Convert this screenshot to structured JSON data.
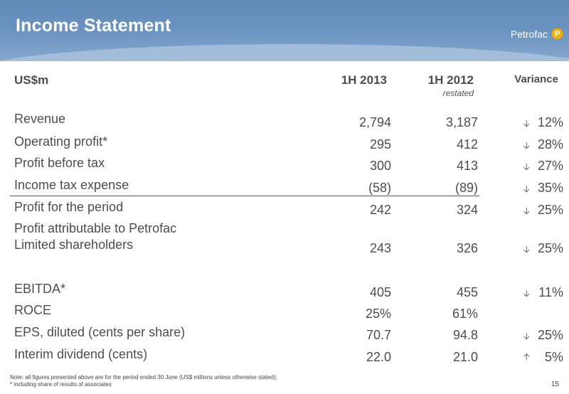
{
  "header": {
    "title": "Income Statement",
    "brand": "Petrofac",
    "brand_logo_letter": "P"
  },
  "columns": {
    "label": "US$m",
    "h1_2013": "1H 2013",
    "h1_2012": "1H 2012",
    "h1_2012_sub": "restated",
    "variance": "Variance"
  },
  "rows": [
    {
      "label": "Revenue",
      "v2013": "2,794",
      "v2012": "3,187",
      "dir": "down",
      "variance": "12%"
    },
    {
      "label": "Operating profit*",
      "v2013": "295",
      "v2012": "412",
      "dir": "down",
      "variance": "28%"
    },
    {
      "label": "Profit before tax",
      "v2013": "300",
      "v2012": "413",
      "dir": "down",
      "variance": "27%"
    },
    {
      "label": "Income tax expense",
      "v2013": "(58)",
      "v2012": "(89)",
      "dir": "down",
      "variance": "35%"
    },
    {
      "label": "Profit for the period",
      "v2013": "242",
      "v2012": "324",
      "dir": "down",
      "variance": "25%"
    },
    {
      "label": "Profit attributable to Petrofac",
      "label2": "Limited shareholders",
      "v2013": "243",
      "v2012": "326",
      "dir": "down",
      "variance": "25%"
    },
    {
      "label": "EBITDA*",
      "v2013": "405",
      "v2012": "455",
      "dir": "down",
      "variance": "11%"
    },
    {
      "label": "ROCE",
      "v2013": "25%",
      "v2012": "61%",
      "dir": "",
      "variance": ""
    },
    {
      "label": "EPS, diluted (cents per share)",
      "v2013": "70.7",
      "v2012": "94.8",
      "dir": "down",
      "variance": "25%"
    },
    {
      "label": "Interim dividend (cents)",
      "v2013": "22.0",
      "v2012": "21.0",
      "dir": "up",
      "variance": "5%"
    }
  ],
  "notes": {
    "line1": "Note: all figures presented above are for the period ended 30 June (US$ millions unless otherwise stated);",
    "line2": "* including share of results of associates"
  },
  "page_number": "15",
  "colors": {
    "header_top": "#5f89b8",
    "header_band": "#a9c1dd",
    "logo": "#e8b21c",
    "text": "#4d4d4d"
  }
}
